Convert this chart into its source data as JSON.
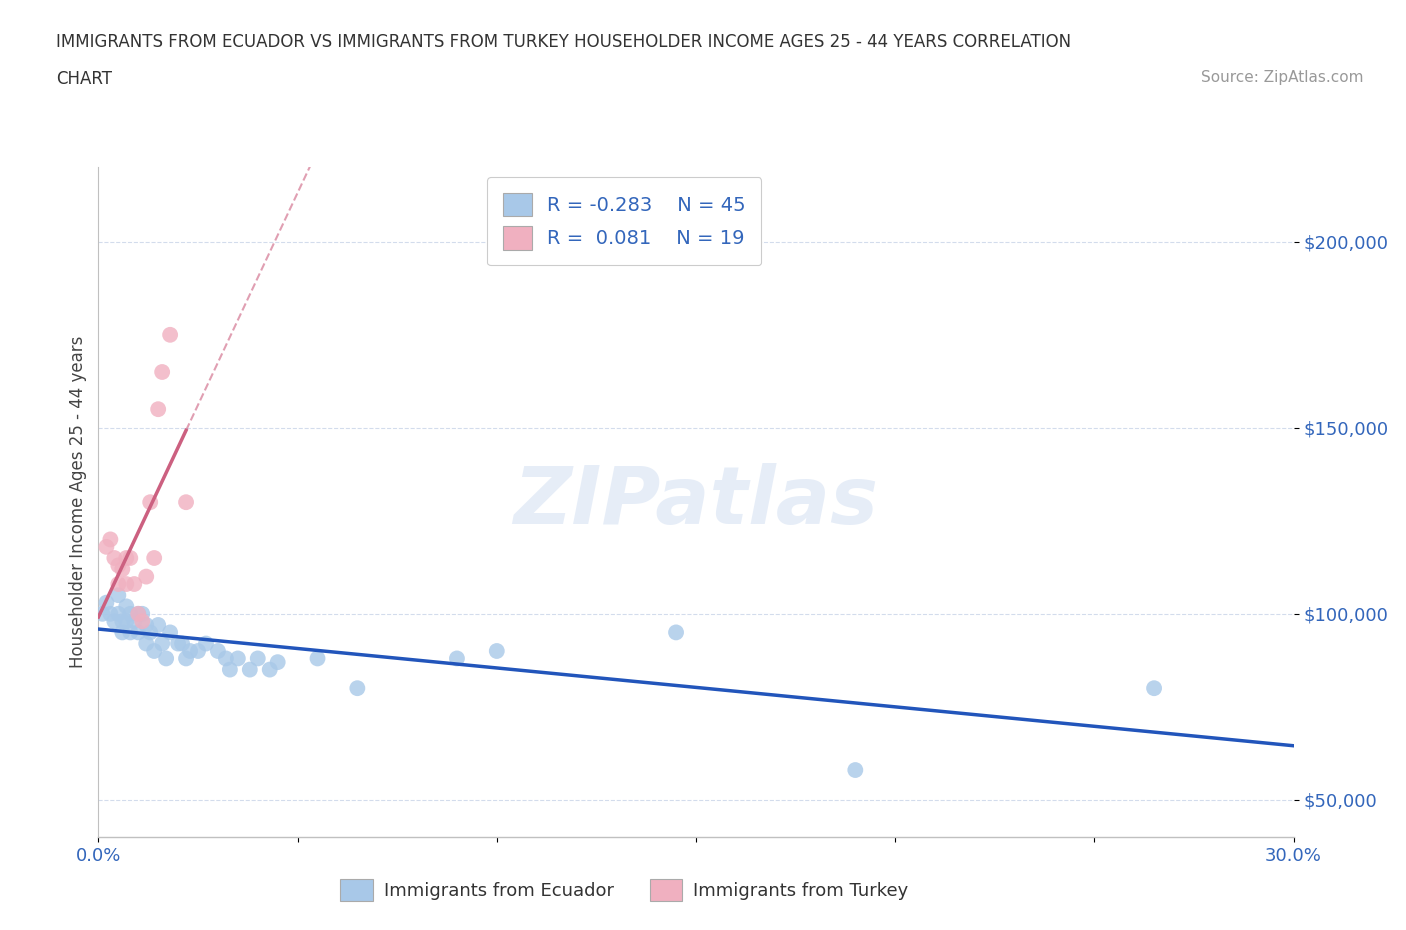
{
  "title_line1": "IMMIGRANTS FROM ECUADOR VS IMMIGRANTS FROM TURKEY HOUSEHOLDER INCOME AGES 25 - 44 YEARS CORRELATION",
  "title_line2": "CHART",
  "source": "Source: ZipAtlas.com",
  "ylabel": "Householder Income Ages 25 - 44 years",
  "xlim": [
    0.0,
    0.3
  ],
  "ylim": [
    40000,
    220000
  ],
  "xtick_positions": [
    0.0,
    0.05,
    0.1,
    0.15,
    0.2,
    0.25,
    0.3
  ],
  "xticklabels": [
    "0.0%",
    "",
    "",
    "",
    "",
    "",
    "30.0%"
  ],
  "ytick_positions": [
    50000,
    100000,
    150000,
    200000
  ],
  "ytick_labels": [
    "$50,000",
    "$100,000",
    "$150,000",
    "$200,000"
  ],
  "ecuador_color": "#a8c8e8",
  "turkey_color": "#f0b0c0",
  "ecuador_line_color": "#2255bb",
  "turkey_line_color": "#cc6080",
  "ecuador_R": -0.283,
  "ecuador_N": 45,
  "turkey_R": 0.081,
  "turkey_N": 19,
  "legend_label_ecuador": "Immigrants from Ecuador",
  "legend_label_turkey": "Immigrants from Turkey",
  "watermark": "ZIPatlas",
  "ecuador_x": [
    0.001,
    0.002,
    0.003,
    0.004,
    0.005,
    0.005,
    0.006,
    0.006,
    0.007,
    0.007,
    0.008,
    0.008,
    0.009,
    0.01,
    0.01,
    0.011,
    0.012,
    0.012,
    0.013,
    0.014,
    0.015,
    0.016,
    0.017,
    0.018,
    0.02,
    0.021,
    0.022,
    0.023,
    0.025,
    0.027,
    0.03,
    0.032,
    0.033,
    0.035,
    0.038,
    0.04,
    0.043,
    0.045,
    0.055,
    0.065,
    0.09,
    0.1,
    0.145,
    0.19,
    0.265
  ],
  "ecuador_y": [
    100000,
    103000,
    100000,
    98000,
    105000,
    100000,
    98000,
    95000,
    102000,
    98000,
    100000,
    95000,
    98000,
    100000,
    95000,
    100000,
    97000,
    92000,
    95000,
    90000,
    97000,
    92000,
    88000,
    95000,
    92000,
    92000,
    88000,
    90000,
    90000,
    92000,
    90000,
    88000,
    85000,
    88000,
    85000,
    88000,
    85000,
    87000,
    88000,
    80000,
    88000,
    90000,
    95000,
    58000,
    80000
  ],
  "turkey_x": [
    0.002,
    0.003,
    0.004,
    0.005,
    0.005,
    0.006,
    0.007,
    0.007,
    0.008,
    0.009,
    0.01,
    0.011,
    0.012,
    0.013,
    0.014,
    0.015,
    0.016,
    0.018,
    0.022
  ],
  "turkey_y": [
    118000,
    120000,
    115000,
    113000,
    108000,
    112000,
    115000,
    108000,
    115000,
    108000,
    100000,
    98000,
    110000,
    130000,
    115000,
    155000,
    165000,
    175000,
    130000
  ]
}
